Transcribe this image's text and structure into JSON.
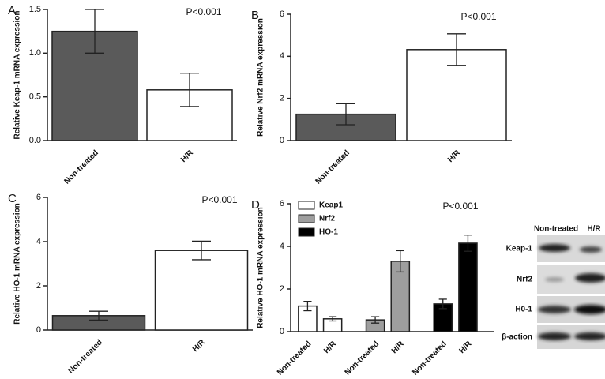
{
  "chart_data": [
    {
      "type": "bar",
      "panel": "A",
      "annotation": "P<0.001",
      "ylabel": "Relative Keap-1 mRNA expression",
      "categories": [
        "Non-treated",
        "H/R"
      ],
      "values": [
        1.25,
        0.58
      ],
      "errors": [
        0.25,
        0.19
      ],
      "colors": [
        "#5a5a5a",
        "#ffffff"
      ],
      "ylim": [
        0,
        1.5
      ],
      "yticks": [
        {
          "value": 0,
          "label": "0.0"
        },
        0.5,
        {
          "value": 1,
          "label": "1.0"
        },
        1.5
      ]
    },
    {
      "type": "bar",
      "panel": "B",
      "annotation": "P<0.001",
      "ylabel": "Relative Nrf2 mRNA expression",
      "categories": [
        "Non-treated",
        "H/R"
      ],
      "values": [
        1.25,
        4.32
      ],
      "errors": [
        0.5,
        0.75
      ],
      "colors": [
        "#5a5a5a",
        "#ffffff"
      ],
      "ylim": [
        0,
        6
      ],
      "yticks": [
        0,
        2,
        4,
        6
      ]
    },
    {
      "type": "bar",
      "panel": "C",
      "annotation": "P<0.001",
      "ylabel": "Relative HO-1 mRNA expression",
      "categories": [
        "Non-treated",
        "H/R"
      ],
      "values": [
        0.65,
        3.6
      ],
      "errors": [
        0.2,
        0.42
      ],
      "colors": [
        "#5a5a5a",
        "#ffffff"
      ],
      "ylim": [
        0,
        6
      ],
      "yticks": [
        0,
        2,
        4,
        6
      ]
    },
    {
      "type": "bar",
      "panel": "D",
      "annotation": "P<0.001",
      "ylabel": "Relative HO-1 mRNA expression",
      "categories": [
        "Non-treated",
        "H/R"
      ],
      "series": [
        {
          "name": "Keap1",
          "color": "#ffffff",
          "values": [
            1.2,
            0.6
          ],
          "errors": [
            0.22,
            0.1
          ]
        },
        {
          "name": "Nrf2",
          "color": "#9e9e9e",
          "values": [
            0.55,
            3.3
          ],
          "errors": [
            0.15,
            0.5
          ]
        },
        {
          "name": "HO-1",
          "color": "#000000",
          "values": [
            1.3,
            4.15
          ],
          "errors": [
            0.22,
            0.38
          ]
        }
      ],
      "legend": "upper left",
      "ylim": [
        0,
        6
      ],
      "yticks": [
        0,
        2,
        4,
        6
      ]
    }
  ],
  "blot": {
    "columns": [
      "Non-treated",
      "H/R"
    ],
    "rows": [
      "Keap-1",
      "Nrf2",
      "H0-1",
      "β-action"
    ]
  }
}
